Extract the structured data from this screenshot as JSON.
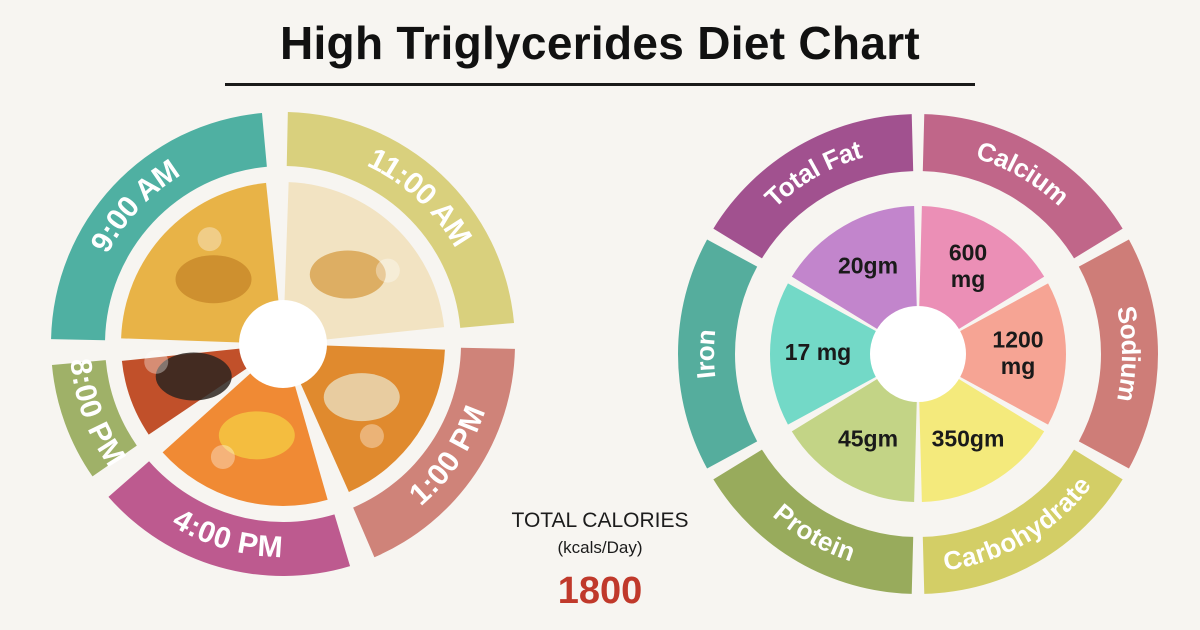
{
  "title": "High Triglycerides Diet Chart",
  "calories": {
    "heading": "TOTAL CALORIES",
    "unit": "(kcals/Day)",
    "value": "1800"
  },
  "meal_schedule": [
    {
      "time": "9:00 AM",
      "food_icon": "besan-cheela-icon",
      "color": "#4fb0a2"
    },
    {
      "time": "11:00 AM",
      "food_icon": "chickpeas-bowl-icon",
      "color": "#d9d07d"
    },
    {
      "time": "1:00 PM",
      "food_icon": "curry-roti-icon",
      "color": "#cf8379"
    },
    {
      "time": "4:00 PM",
      "food_icon": "papaya-icon",
      "color": "#bd5a8f"
    },
    {
      "time": "8:00 PM",
      "food_icon": "paneer-curry-icon",
      "color": "#9fb168"
    }
  ],
  "chart_data": {
    "type": "pie",
    "title": "",
    "slices": [
      {
        "nutrient": "Total Fat",
        "value_label": "20gm",
        "outer_color": "#a1518f",
        "inner_color": "#c285cc"
      },
      {
        "nutrient": "Calcium",
        "value_label": "600 mg",
        "outer_color": "#c06689",
        "inner_color": "#eb8fb6"
      },
      {
        "nutrient": "Sodium",
        "value_label": "1200 mg",
        "outer_color": "#ce7d78",
        "inner_color": "#f6a494"
      },
      {
        "nutrient": "Carbohydrate",
        "value_label": "350gm",
        "outer_color": "#d3ce66",
        "inner_color": "#f4ea7c"
      },
      {
        "nutrient": "Protein",
        "value_label": "45gm",
        "outer_color": "#98ab5c",
        "inner_color": "#c3d486"
      },
      {
        "nutrient": "Iron",
        "value_label": "17 mg",
        "outer_color": "#55ad9d",
        "inner_color": "#73d9c7"
      }
    ]
  }
}
